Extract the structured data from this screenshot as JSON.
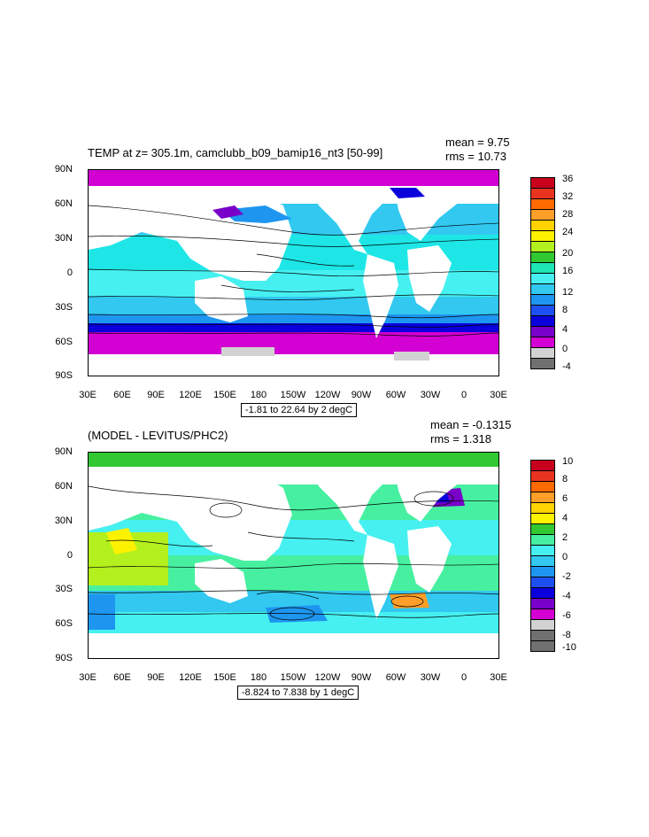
{
  "panels": [
    {
      "title": "TEMP at z= 305.1m, camclubb_b09_bamip16_nt3 [50-99]",
      "mean_label": "mean = 9.75",
      "rms_label": "rms = 10.73",
      "info": "-1.81 to 22.64 by 2 degC",
      "lat_labels": [
        "90N",
        "60N",
        "30N",
        "0",
        "30S",
        "60S",
        "90S"
      ],
      "lon_labels": [
        "30E",
        "60E",
        "90E",
        "120E",
        "150E",
        "180",
        "150W",
        "120W",
        "90W",
        "60W",
        "30W",
        "0",
        "30E"
      ],
      "legend_labels": [
        "36",
        "32",
        "28",
        "24",
        "20",
        "16",
        "12",
        "8",
        "4",
        "0",
        "-4"
      ],
      "legend_colors": [
        "#c8001e",
        "#e8341e",
        "#ff6a00",
        "#ff9e28",
        "#ffd200",
        "#fff200",
        "#b4f01e",
        "#32c832",
        "#1ee6b4",
        "#46f0f0",
        "#32c8f0",
        "#1e96f0",
        "#1e50f0",
        "#0a00dc",
        "#7800c8",
        "#d200d2",
        "#d2d2d2",
        "#707070"
      ]
    },
    {
      "title": "(MODEL - LEVITUS/PHC2)",
      "mean_label": "mean = -0.1315",
      "rms_label": "rms = 1.318",
      "info": "-8.824 to 7.838 by 1 degC",
      "lat_labels": [
        "90N",
        "60N",
        "30N",
        "0",
        "30S",
        "60S",
        "90S"
      ],
      "lon_labels": [
        "30E",
        "60E",
        "90E",
        "120E",
        "150E",
        "180",
        "150W",
        "120W",
        "90W",
        "60W",
        "30W",
        "0",
        "30E"
      ],
      "legend_labels": [
        "10",
        "8",
        "6",
        "4",
        "2",
        "0",
        "-2",
        "-4",
        "-6",
        "-8",
        "-10"
      ],
      "legend_colors": [
        "#c8001e",
        "#e8341e",
        "#ff6a00",
        "#ff9e28",
        "#ffd200",
        "#fff200",
        "#32c832",
        "#46f0a0",
        "#46f0f0",
        "#32c8f0",
        "#1e96f0",
        "#1e50f0",
        "#0a00dc",
        "#7800c8",
        "#d200d2",
        "#d2d2d2",
        "#707070",
        "#707070"
      ]
    }
  ]
}
